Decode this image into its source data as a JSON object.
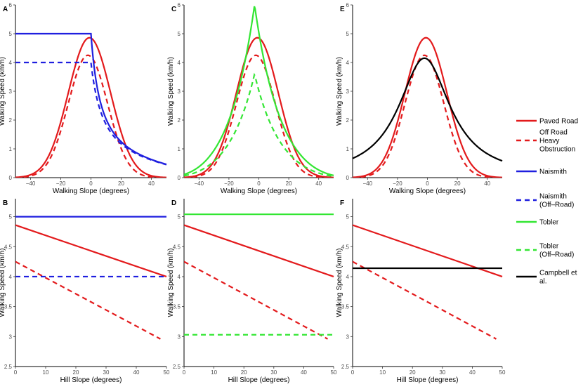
{
  "chart_data": [
    {
      "panel": "A",
      "type": "line",
      "xlabel": "Walking Slope (degrees)",
      "ylabel": "Walking Speed (km/h)",
      "xlim": [
        -50,
        50
      ],
      "ylim": [
        0,
        6
      ],
      "xticks": [
        -40,
        -20,
        0,
        20,
        40
      ],
      "yticks": [
        0,
        1,
        2,
        3,
        4,
        5,
        6
      ],
      "series": [
        "paved",
        "offroad",
        "naismith",
        "naismith_off"
      ]
    },
    {
      "panel": "C",
      "type": "line",
      "xlabel": "Walking Slope (degrees)",
      "ylabel": "Walking Speed (km/h)",
      "xlim": [
        -50,
        50
      ],
      "ylim": [
        0,
        6
      ],
      "xticks": [
        -40,
        -20,
        0,
        20,
        40
      ],
      "yticks": [
        0,
        1,
        2,
        3,
        4,
        5,
        6
      ],
      "series": [
        "paved",
        "offroad",
        "tobler",
        "tobler_off"
      ]
    },
    {
      "panel": "E",
      "type": "line",
      "xlabel": "Walking Slope (degrees)",
      "ylabel": "Walking Speed (km/h)",
      "xlim": [
        -50,
        50
      ],
      "ylim": [
        0,
        6
      ],
      "xticks": [
        -40,
        -20,
        0,
        20,
        40
      ],
      "yticks": [
        0,
        1,
        2,
        3,
        4,
        5,
        6
      ],
      "series": [
        "paved",
        "offroad",
        "campbell"
      ]
    },
    {
      "panel": "B",
      "type": "line",
      "xlabel": "Hill Slope (degrees)",
      "ylabel": "Walking Speed (km/h)",
      "xlim": [
        0,
        50
      ],
      "ylim": [
        2.5,
        5.3
      ],
      "xticks": [
        0,
        10,
        20,
        30,
        40,
        50
      ],
      "yticks": [
        2.5,
        3,
        3.5,
        4,
        4.5,
        5
      ],
      "series": [
        "paved",
        "offroad",
        "naismith",
        "naismith_off"
      ]
    },
    {
      "panel": "D",
      "type": "line",
      "xlabel": "Hill Slope (degrees)",
      "ylabel": "Walking Speed (km/h)",
      "xlim": [
        0,
        50
      ],
      "ylim": [
        2.5,
        5.3
      ],
      "xticks": [
        0,
        10,
        20,
        30,
        40,
        50
      ],
      "yticks": [
        2.5,
        3,
        3.5,
        4,
        4.5,
        5
      ],
      "series": [
        "paved",
        "offroad",
        "tobler",
        "tobler_off"
      ]
    },
    {
      "panel": "F",
      "type": "line",
      "xlabel": "Hill Slope (degrees)",
      "ylabel": "Walking Speed (km/h)",
      "xlim": [
        0,
        50
      ],
      "ylim": [
        2.5,
        5.3
      ],
      "xticks": [
        0,
        10,
        20,
        30,
        40,
        50
      ],
      "yticks": [
        2.5,
        3,
        3.5,
        4,
        4.5,
        5
      ],
      "series": [
        "paved",
        "offroad",
        "campbell"
      ]
    }
  ],
  "series_styles": {
    "paved": {
      "color": "#e31a1c",
      "dash": "solid"
    },
    "offroad": {
      "color": "#e31a1c",
      "dash": "dashed"
    },
    "naismith": {
      "color": "#1f1fdf",
      "dash": "solid"
    },
    "naismith_off": {
      "color": "#1f1fdf",
      "dash": "dashed"
    },
    "tobler": {
      "color": "#33e633",
      "dash": "solid"
    },
    "tobler_off": {
      "color": "#33e633",
      "dash": "dashed"
    },
    "campbell": {
      "color": "#000000",
      "dash": "solid"
    }
  },
  "functions": {
    "paved": {
      "kind": "gaussian",
      "peak": 4.86,
      "center": -1,
      "sigma": 14
    },
    "offroad": {
      "kind": "gaussian",
      "peak": 4.25,
      "center": -2,
      "sigma": 13
    },
    "naismith": {
      "kind": "naismith",
      "flat": 5.0,
      "descent_limit": 0
    },
    "naismith_off": {
      "kind": "naismith",
      "flat": 4.0,
      "descent_limit": 0
    },
    "tobler": {
      "kind": "tobler",
      "factor": 6.0,
      "offroad_factor": 1.0
    },
    "tobler_off": {
      "kind": "tobler",
      "factor": 3.6,
      "offroad_factor": 1.0
    },
    "campbell": {
      "kind": "lorentz",
      "peak": 4.15,
      "center": -2,
      "gamma": 21
    }
  },
  "hill_lines": {
    "paved": [
      [
        0,
        4.86
      ],
      [
        50,
        4.0
      ]
    ],
    "offroad": [
      [
        0,
        4.25
      ],
      [
        48,
        2.96
      ]
    ],
    "naismith": [
      [
        0,
        5.0
      ],
      [
        50,
        5.0
      ]
    ],
    "naismith_off": [
      [
        0,
        4.0
      ],
      [
        50,
        4.0
      ]
    ],
    "tobler": [
      [
        0,
        5.04
      ],
      [
        50,
        5.04
      ]
    ],
    "tobler_off": [
      [
        0,
        3.03
      ],
      [
        50,
        3.03
      ]
    ],
    "campbell": [
      [
        0,
        4.14
      ],
      [
        50,
        4.14
      ]
    ]
  },
  "legend": [
    {
      "key": "paved",
      "lines": [
        "Paved Road"
      ]
    },
    {
      "key": "offroad",
      "lines": [
        "Off Road",
        "Heavy",
        "Obstruction"
      ]
    },
    {
      "key": "naismith",
      "lines": [
        "Naismith"
      ]
    },
    {
      "key": "naismith_off",
      "lines": [
        "Naismith",
        "(Off–Road)"
      ]
    },
    {
      "key": "tobler",
      "lines": [
        "Tobler"
      ]
    },
    {
      "key": "tobler_off",
      "lines": [
        "Tobler",
        "(Off–Road)"
      ]
    },
    {
      "key": "campbell",
      "lines": [
        "Campbell et",
        "al."
      ]
    }
  ]
}
